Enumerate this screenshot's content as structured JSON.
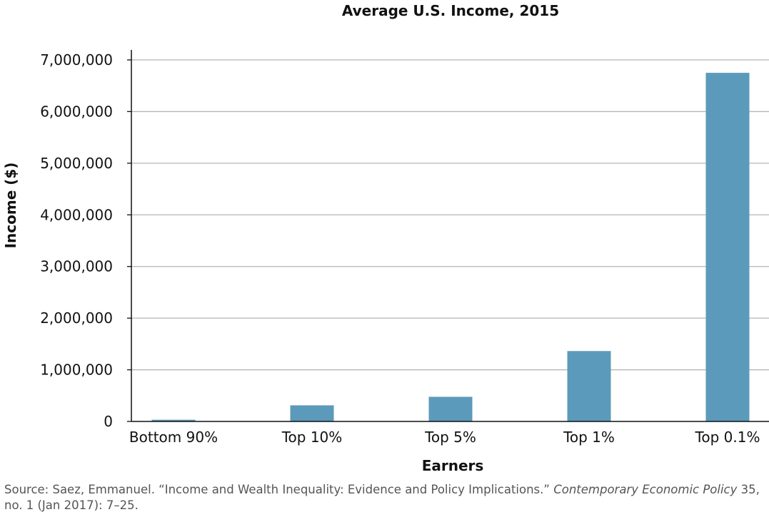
{
  "chart_data": {
    "type": "bar",
    "title": "Average U.S. Income, 2015",
    "xlabel": "Earners",
    "ylabel": "Income ($)",
    "categories": [
      "Bottom 90%",
      "Top 10%",
      "Top 5%",
      "Top 1%",
      "Top 0.1%"
    ],
    "values": [
      33000,
      312000,
      477000,
      1363000,
      6750000
    ],
    "ylim": [
      0,
      7000000
    ],
    "yticks": [
      0,
      1000000,
      2000000,
      3000000,
      4000000,
      5000000,
      6000000,
      7000000
    ],
    "ytick_labels": [
      "0",
      "1,000,000",
      "2,000,000",
      "3,000,000",
      "4,000,000",
      "5,000,000",
      "6,000,000",
      "7,000,000"
    ],
    "grid": "horizontal",
    "bar_color": "#5b9aba",
    "legend": "none"
  },
  "source": {
    "prefix": "Source: Saez, Emmanuel. “Income and Wealth Inequality: Evidence and Policy Implications.” ",
    "journal": "Contemporary Economic Policy",
    "suffix": " 35, no. 1 (Jan 2017): 7–25."
  }
}
